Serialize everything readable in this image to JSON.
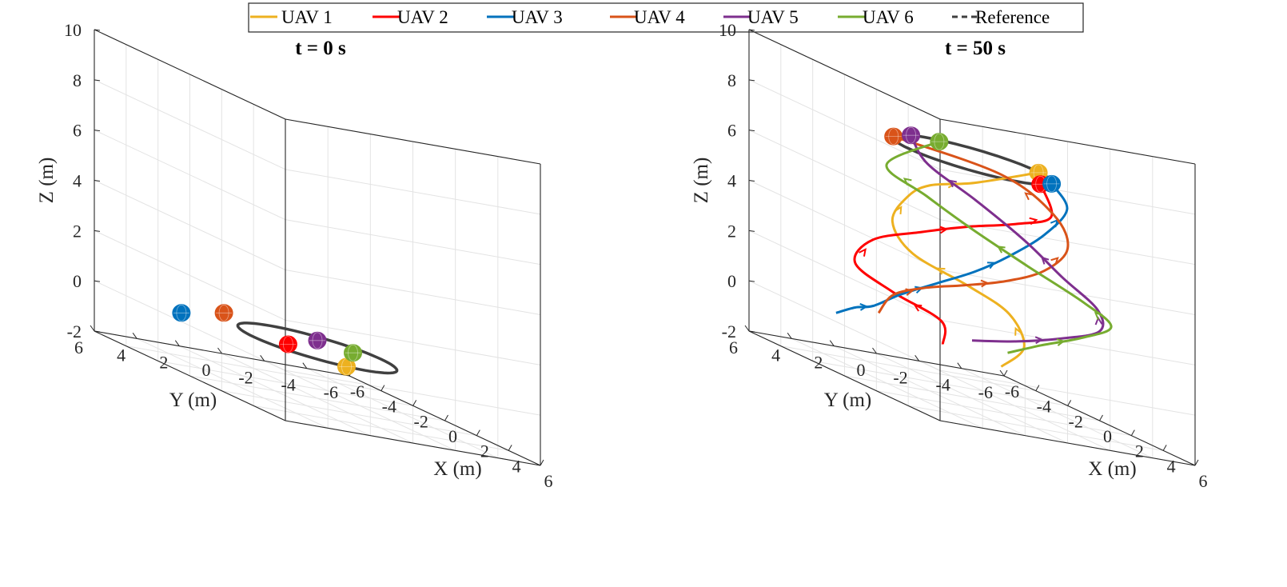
{
  "legend": {
    "placement": "top-center",
    "entries": [
      {
        "label": "UAV 1",
        "color": "#EDB120",
        "style": "solid"
      },
      {
        "label": "UAV 2",
        "color": "#FF0000",
        "style": "solid"
      },
      {
        "label": "UAV 3",
        "color": "#0072BD",
        "style": "solid"
      },
      {
        "label": "UAV 4",
        "color": "#D95319",
        "style": "solid"
      },
      {
        "label": "UAV 5",
        "color": "#7E2F8E",
        "style": "solid"
      },
      {
        "label": "UAV 6",
        "color": "#77AC30",
        "style": "solid"
      },
      {
        "label": "Reference",
        "color": "#404040",
        "style": "dashed"
      }
    ]
  },
  "chart_data": [
    {
      "type": "scatter3d",
      "title": "t = 0 s",
      "xlabel": "X (m)",
      "ylabel": "Y (m)",
      "zlabel": "Z (m)",
      "xlim": [
        -6,
        6
      ],
      "ylim": [
        -6,
        6
      ],
      "zlim": [
        -2,
        10
      ],
      "xticks": [
        -6,
        -4,
        -2,
        0,
        2,
        4,
        6
      ],
      "yticks": [
        -6,
        -4,
        -2,
        0,
        2,
        4,
        6
      ],
      "zticks": [
        -2,
        0,
        2,
        4,
        6,
        8,
        10
      ],
      "grid": true,
      "reference_circle": {
        "radius": 3,
        "z": 0
      },
      "uav_positions": [
        {
          "name": "UAV 1",
          "x": 2.9,
          "y": 0.8,
          "z": 0
        },
        {
          "name": "UAV 2",
          "x": 0.3,
          "y": 1.6,
          "z": 0
        },
        {
          "name": "UAV 3",
          "x": -2.4,
          "y": 4.6,
          "z": 0
        },
        {
          "name": "UAV 4",
          "x": -4.0,
          "y": 1.4,
          "z": 0
        },
        {
          "name": "UAV 5",
          "x": -1.6,
          "y": -1.2,
          "z": 0
        },
        {
          "name": "UAV 6",
          "x": -0.3,
          "y": -1.9,
          "z": 0
        }
      ]
    },
    {
      "type": "line3d",
      "title": "t = 50 s",
      "xlabel": "X (m)",
      "ylabel": "Y (m)",
      "zlabel": "Z (m)",
      "xlim": [
        -6,
        6
      ],
      "ylim": [
        -6,
        6
      ],
      "zlim": [
        -2,
        10
      ],
      "xticks": [
        -6,
        -4,
        -2,
        0,
        2,
        4,
        6
      ],
      "yticks": [
        -6,
        -4,
        -2,
        0,
        2,
        4,
        6
      ],
      "zticks": [
        -2,
        0,
        2,
        4,
        6,
        8,
        10
      ],
      "grid": true,
      "reference_circle": {
        "radius": 3,
        "z": 7.5
      },
      "series": [
        {
          "name": "UAV 1",
          "color": "#EDB120",
          "points": [
            [
              2.9,
              0.8,
              0
            ],
            [
              2.2,
              -0.8,
              0.8
            ],
            [
              1.0,
              -1.0,
              1.8
            ],
            [
              0.8,
              0.8,
              2.6
            ],
            [
              -0.8,
              2.2,
              3.2
            ],
            [
              -2.6,
              1.8,
              4.0
            ],
            [
              -3.0,
              0.8,
              5.0
            ],
            [
              -2.0,
              0.5,
              5.8
            ],
            [
              -0.5,
              -0.5,
              6.5
            ],
            [
              0.3,
              -2.9,
              7.5
            ]
          ]
        },
        {
          "name": "UAV 2",
          "color": "#FF0000",
          "points": [
            [
              0.3,
              1.6,
              0
            ],
            [
              0.2,
              1.6,
              0.9
            ],
            [
              -1.0,
              3.0,
              1.5
            ],
            [
              -2.0,
              4.0,
              2.2
            ],
            [
              -3.3,
              2.2,
              3.0
            ],
            [
              -2.5,
              0.5,
              3.8
            ],
            [
              -1.0,
              -0.5,
              4.6
            ],
            [
              0.8,
              -1.5,
              5.4
            ],
            [
              2.3,
              -2.0,
              6.2
            ],
            [
              2.7,
              -1.2,
              7.5
            ]
          ]
        },
        {
          "name": "UAV 3",
          "color": "#0072BD",
          "points": [
            [
              -2.4,
              4.6,
              0
            ],
            [
              -1.6,
              4.3,
              0.5
            ],
            [
              -1.0,
              3.9,
              0.8
            ],
            [
              -0.2,
              3.2,
              1.6
            ],
            [
              0.8,
              2.2,
              2.5
            ],
            [
              1.8,
              1.2,
              3.4
            ],
            [
              2.6,
              0.2,
              4.4
            ],
            [
              3.2,
              -1.0,
              5.6
            ],
            [
              3.3,
              -2.0,
              6.8
            ],
            [
              2.2,
              -2.1,
              7.5
            ]
          ]
        },
        {
          "name": "UAV 4",
          "color": "#D95319",
          "points": [
            [
              -4.0,
              1.4,
              0
            ],
            [
              -3.6,
              1.0,
              0.9
            ],
            [
              -2.6,
              0.2,
              1.6
            ],
            [
              -1.3,
              -0.6,
              2.2
            ],
            [
              0.0,
              -1.6,
              2.9
            ],
            [
              1.2,
              -2.5,
              3.8
            ],
            [
              2.0,
              -3.0,
              5.0
            ],
            [
              1.8,
              -2.5,
              6.2
            ],
            [
              0.5,
              -1.0,
              7.2
            ],
            [
              -2.0,
              2.2,
              7.5
            ]
          ]
        },
        {
          "name": "UAV 5",
          "color": "#7E2F8E",
          "points": [
            [
              -1.6,
              -1.2,
              0
            ],
            [
              -0.4,
              -2.4,
              0.5
            ],
            [
              1.0,
              -3.5,
              1.2
            ],
            [
              2.4,
              -4.2,
              2.0
            ],
            [
              3.2,
              -3.5,
              3.0
            ],
            [
              3.0,
              -2.0,
              4.0
            ],
            [
              2.0,
              -1.0,
              5.0
            ],
            [
              0.5,
              0.2,
              6.0
            ],
            [
              -1.2,
              1.2,
              6.8
            ],
            [
              -2.9,
              0.7,
              7.5
            ]
          ]
        },
        {
          "name": "UAV 6",
          "color": "#77AC30",
          "points": [
            [
              -0.3,
              -1.9,
              0
            ],
            [
              0.6,
              -2.8,
              0.7
            ],
            [
              1.8,
              -3.8,
              1.5
            ],
            [
              2.6,
              -4.6,
              2.3
            ],
            [
              2.2,
              -3.6,
              3.0
            ],
            [
              0.8,
              -2.0,
              3.8
            ],
            [
              -0.6,
              -0.5,
              4.6
            ],
            [
              -1.8,
              0.8,
              5.4
            ],
            [
              -2.7,
              2.0,
              6.2
            ],
            [
              -2.6,
              -0.4,
              7.5
            ]
          ]
        }
      ],
      "uav_positions": [
        {
          "name": "UAV 1",
          "x": 0.3,
          "y": -2.9,
          "z": 7.5
        },
        {
          "name": "UAV 2",
          "x": 2.7,
          "y": -1.2,
          "z": 7.5
        },
        {
          "name": "UAV 3",
          "x": 2.2,
          "y": -2.1,
          "z": 7.5
        },
        {
          "name": "UAV 4",
          "x": -2.0,
          "y": 2.2,
          "z": 7.5
        },
        {
          "name": "UAV 5",
          "x": -2.9,
          "y": 0.7,
          "z": 7.5
        },
        {
          "name": "UAV 6",
          "x": -2.6,
          "y": -0.4,
          "z": 7.5
        }
      ]
    }
  ]
}
